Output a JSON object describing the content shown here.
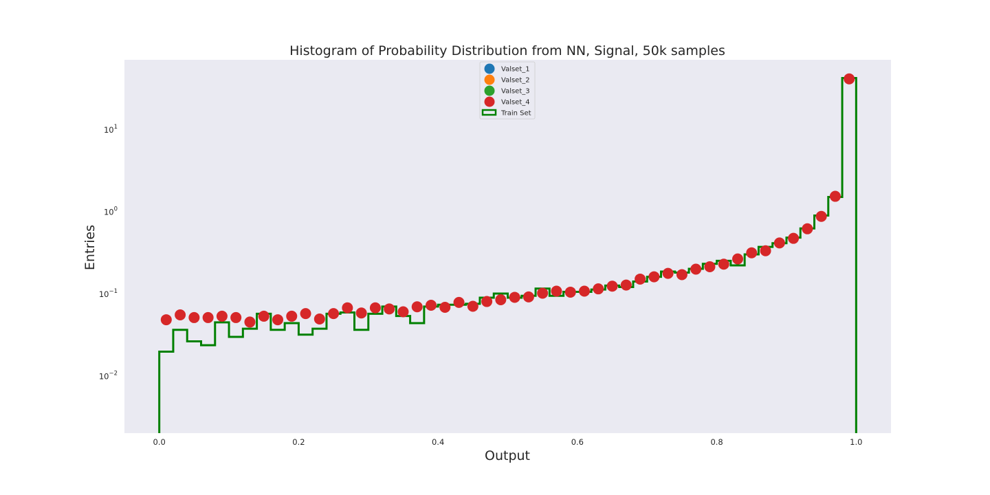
{
  "chart_data": {
    "type": "histogram",
    "title": "Histogram of Probability Distribution from NN, Signal, 50k samples",
    "xlabel": "Output",
    "ylabel": "Entries",
    "xlim": [
      -0.05,
      1.05
    ],
    "ylim": [
      0.002,
      70
    ],
    "yscale": "log",
    "grid": false,
    "legend_position": "upper center",
    "x_ticks": [
      0.0,
      0.2,
      0.4,
      0.6,
      0.8,
      1.0
    ],
    "x_tick_labels": [
      "0.0",
      "0.2",
      "0.4",
      "0.6",
      "0.8",
      "1.0"
    ],
    "y_ticks": [
      {
        "value": 0.01,
        "base": "10",
        "exp": "−2"
      },
      {
        "value": 0.1,
        "base": "10",
        "exp": "−1"
      },
      {
        "value": 1,
        "base": "10",
        "exp": "0"
      },
      {
        "value": 10,
        "base": "10",
        "exp": "1"
      }
    ],
    "bin_edges": [
      0.0,
      0.02,
      0.04,
      0.06,
      0.08,
      0.1,
      0.12,
      0.14,
      0.16,
      0.18,
      0.2,
      0.22,
      0.24,
      0.26,
      0.28,
      0.3,
      0.32,
      0.34,
      0.36,
      0.38,
      0.4,
      0.42,
      0.44,
      0.46,
      0.48,
      0.5,
      0.52,
      0.54,
      0.56,
      0.58,
      0.6,
      0.62,
      0.64,
      0.66,
      0.68,
      0.7,
      0.72,
      0.74,
      0.76,
      0.78,
      0.8,
      0.82,
      0.84,
      0.86,
      0.88,
      0.9,
      0.92,
      0.94,
      0.96,
      0.98,
      1.0
    ],
    "series": [
      {
        "name": "Valset_1",
        "kind": "points",
        "color": "#1f77b4",
        "values": []
      },
      {
        "name": "Valset_2",
        "kind": "points",
        "color": "#ff7f0e",
        "values": []
      },
      {
        "name": "Valset_3",
        "kind": "points",
        "color": "#2ca02c",
        "values": []
      },
      {
        "name": "Valset_4",
        "kind": "points",
        "color": "#d62728",
        "x": [
          0.01,
          0.03,
          0.05,
          0.07,
          0.09,
          0.11,
          0.13,
          0.15,
          0.17,
          0.19,
          0.21,
          0.23,
          0.25,
          0.27,
          0.29,
          0.31,
          0.33,
          0.35,
          0.37,
          0.39,
          0.41,
          0.43,
          0.45,
          0.47,
          0.49,
          0.51,
          0.53,
          0.55,
          0.57,
          0.59,
          0.61,
          0.63,
          0.65,
          0.67,
          0.69,
          0.71,
          0.73,
          0.75,
          0.77,
          0.79,
          0.81,
          0.83,
          0.85,
          0.87,
          0.89,
          0.91,
          0.93,
          0.95,
          0.97,
          0.99
        ],
        "values": [
          0.048,
          0.055,
          0.051,
          0.051,
          0.053,
          0.051,
          0.045,
          0.053,
          0.048,
          0.053,
          0.057,
          0.049,
          0.057,
          0.067,
          0.058,
          0.067,
          0.065,
          0.06,
          0.069,
          0.072,
          0.068,
          0.078,
          0.07,
          0.08,
          0.084,
          0.09,
          0.091,
          0.101,
          0.107,
          0.104,
          0.107,
          0.114,
          0.123,
          0.127,
          0.15,
          0.16,
          0.176,
          0.17,
          0.198,
          0.212,
          0.228,
          0.264,
          0.313,
          0.332,
          0.413,
          0.47,
          0.614,
          0.869,
          1.526,
          41.0
        ]
      },
      {
        "name": "Train Set",
        "kind": "step",
        "color": "#008000",
        "values": [
          0.0196,
          0.0362,
          0.0262,
          0.0235,
          0.0446,
          0.0297,
          0.0373,
          0.0568,
          0.0362,
          0.0436,
          0.0316,
          0.0373,
          0.0568,
          0.0589,
          0.0362,
          0.0568,
          0.0695,
          0.0533,
          0.0436,
          0.0695,
          0.073,
          0.073,
          0.075,
          0.089,
          0.1,
          0.089,
          0.094,
          0.115,
          0.094,
          0.105,
          0.105,
          0.112,
          0.125,
          0.12,
          0.14,
          0.16,
          0.185,
          0.18,
          0.2,
          0.23,
          0.25,
          0.22,
          0.3,
          0.37,
          0.41,
          0.48,
          0.62,
          0.89,
          1.5,
          42.0
        ]
      }
    ]
  }
}
